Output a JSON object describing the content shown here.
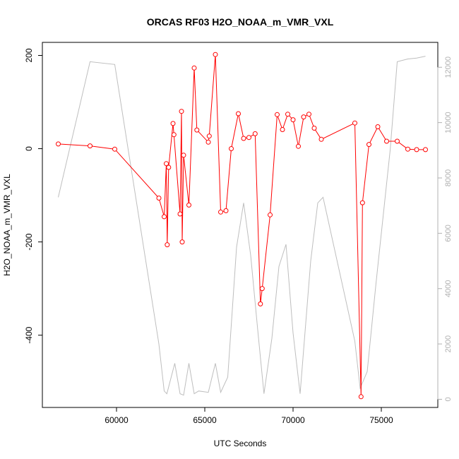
{
  "chart_data": {
    "type": "line",
    "title": "ORCAS RF03 H2O_NOAA_m_VMR_VXL",
    "xlabel": "UTC Seconds",
    "ylabel": "H2O_NOAA_m_VMR_VXL",
    "xlim": [
      55800,
      78200
    ],
    "ylim": [
      -555,
      228
    ],
    "y2lim": [
      -295,
      12900
    ],
    "x_ticks": [
      60000,
      65000,
      70000,
      75000
    ],
    "y_ticks": [
      200,
      0,
      -200,
      -400
    ],
    "y2_ticks": [
      0,
      2000,
      4000,
      6000,
      8000,
      10000,
      12000
    ],
    "colors": {
      "primary": "#ff0000",
      "secondary": "#bebebe"
    },
    "series": [
      {
        "axis": "left",
        "style": "line+points",
        "x": [
          56700,
          58500,
          59900,
          62400,
          62700,
          62820,
          62870,
          62950,
          63200,
          63250,
          63600,
          63680,
          63720,
          63800,
          64100,
          64400,
          64550,
          65200,
          65250,
          65600,
          65900,
          66200,
          66500,
          66900,
          67200,
          67500,
          67850,
          68150,
          68250,
          68700,
          69100,
          69400,
          69700,
          70000,
          70300,
          70600,
          70900,
          71200,
          71600,
          73500,
          73850,
          73930,
          74300,
          74800,
          75300,
          75900,
          76500,
          77000,
          77500
        ],
        "y": [
          10,
          6,
          -1,
          -106,
          -146,
          -32,
          -206,
          -40,
          54,
          30,
          -140,
          80,
          -200,
          -14,
          -121,
          173,
          40,
          14,
          27,
          202,
          -136,
          -133,
          0,
          75,
          22,
          24,
          32,
          -333,
          -300,
          -142,
          73,
          41,
          74,
          62,
          5,
          68,
          74,
          44,
          20,
          55,
          -532,
          -116,
          9,
          47,
          16,
          16,
          -1,
          -2,
          -2
        ]
      },
      {
        "axis": "right",
        "style": "line",
        "x": [
          56700,
          58500,
          59900,
          62400,
          62700,
          62850,
          63300,
          63600,
          63800,
          64100,
          64400,
          64650,
          65200,
          65600,
          65900,
          66300,
          66800,
          67200,
          67600,
          68000,
          68350,
          68800,
          69200,
          69600,
          70000,
          70400,
          71000,
          71400,
          71700,
          73500,
          73800,
          74200,
          74700,
          75500,
          75900,
          76500,
          77000,
          77500
        ],
        "y": [
          7300,
          12200,
          12100,
          2000,
          300,
          200,
          1300,
          200,
          150,
          1300,
          200,
          300,
          250,
          1300,
          250,
          800,
          5500,
          7100,
          5200,
          2500,
          200,
          2200,
          4800,
          5600,
          2400,
          200,
          5000,
          7100,
          7300,
          2100,
          400,
          1000,
          4200,
          9000,
          12200,
          12300,
          12330,
          12400
        ]
      }
    ]
  }
}
